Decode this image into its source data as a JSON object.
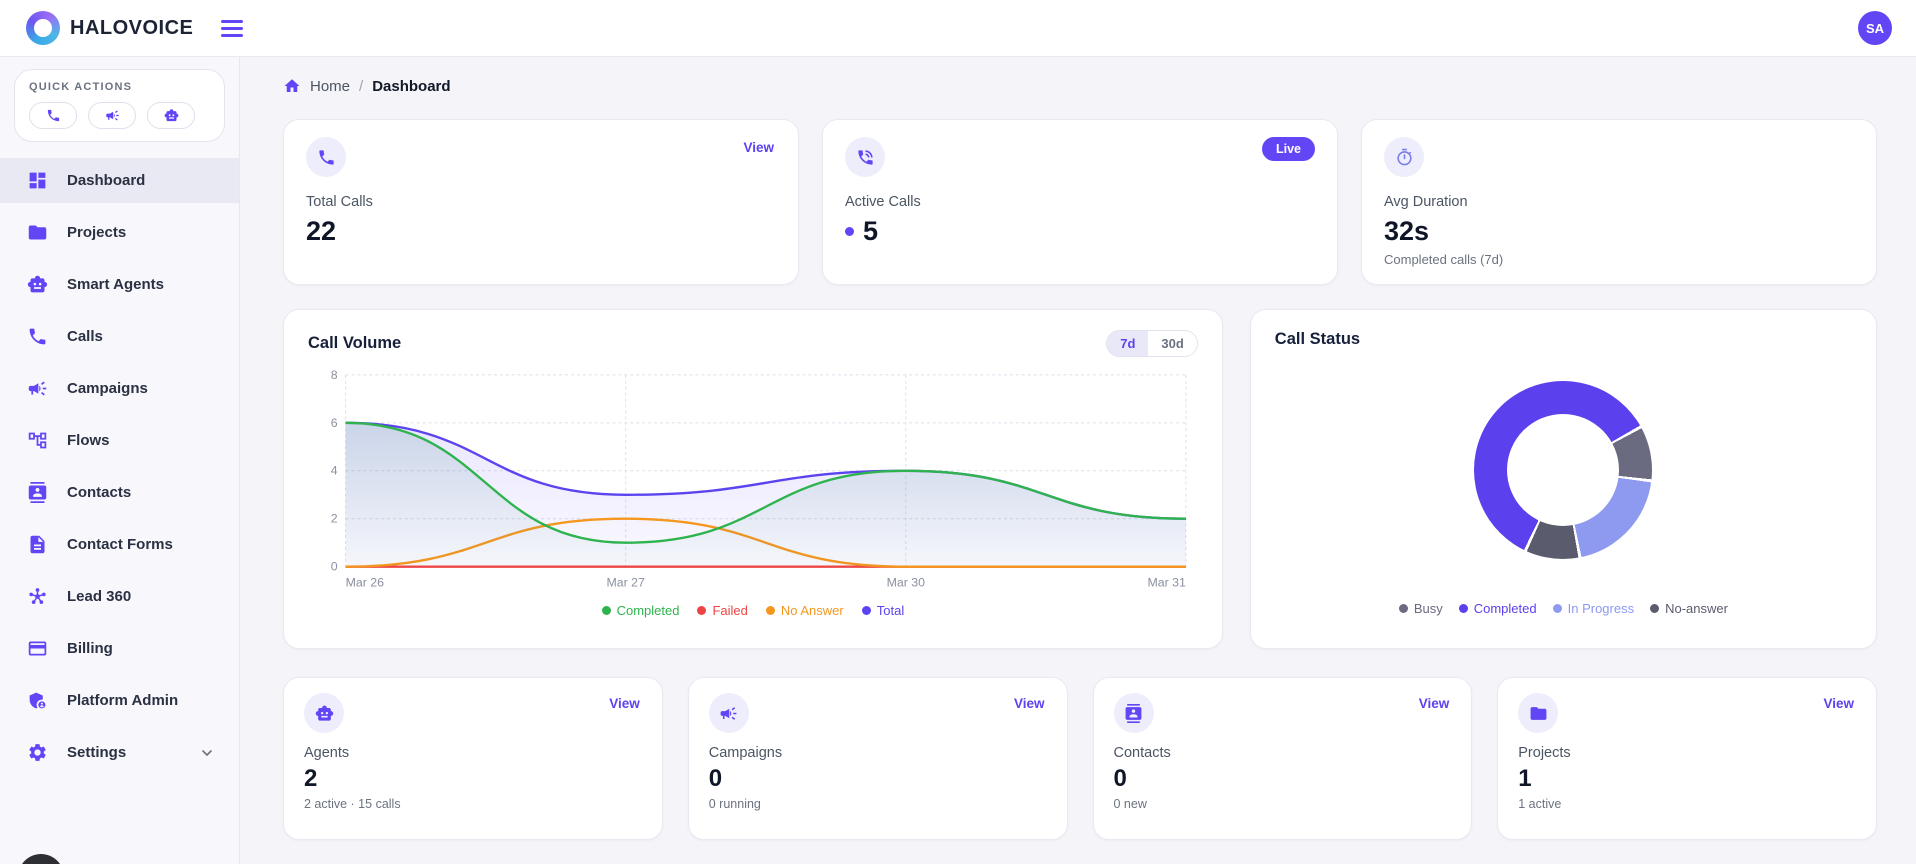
{
  "topbar": {
    "brand": "HALOVOICE",
    "avatar": "SA"
  },
  "colors": {
    "accent": "#6246f5",
    "chart_total": "#5b43f0",
    "chart_completed": "#2eb34f",
    "chart_failed": "#ef4444",
    "chart_no_answer": "#f5961e",
    "donut_completed": "#5b40ee",
    "donut_in_progress": "#8e9af0",
    "donut_busy": "#6a6a80",
    "donut_no_answer": "#5a5c6e"
  },
  "sidebar": {
    "quick_actions_label": "QUICK ACTIONS",
    "quick_actions": [
      {
        "icon": "phone"
      },
      {
        "icon": "megaphone"
      },
      {
        "icon": "robot"
      }
    ],
    "items": [
      {
        "label": "Dashboard",
        "icon": "dashboard",
        "active": true
      },
      {
        "label": "Projects",
        "icon": "folder"
      },
      {
        "label": "Smart Agents",
        "icon": "robot"
      },
      {
        "label": "Calls",
        "icon": "phone"
      },
      {
        "label": "Campaigns",
        "icon": "megaphone"
      },
      {
        "label": "Flows",
        "icon": "flow"
      },
      {
        "label": "Contacts",
        "icon": "contact-card"
      },
      {
        "label": "Contact Forms",
        "icon": "document"
      },
      {
        "label": "Lead 360",
        "icon": "hub"
      },
      {
        "label": "Billing",
        "icon": "credit-card"
      },
      {
        "label": "Platform Admin",
        "icon": "shield-user"
      },
      {
        "label": "Settings",
        "icon": "gear",
        "chevron": true
      }
    ]
  },
  "breadcrumb": {
    "home": "Home",
    "separator": "/",
    "current": "Dashboard"
  },
  "stat_cards": {
    "total_calls": {
      "label": "Total Calls",
      "value": "22",
      "action": "View",
      "icon": "phone"
    },
    "active_calls": {
      "label": "Active Calls",
      "value": "5",
      "badge": "Live",
      "icon": "phone-call"
    },
    "avg_duration": {
      "label": "Avg Duration",
      "value": "32s",
      "subtext": "Completed calls (7d)",
      "icon": "stopwatch"
    }
  },
  "volume_chart": {
    "title": "Call Volume",
    "ranges": [
      {
        "label": "7d",
        "active": true
      },
      {
        "label": "30d",
        "active": false
      }
    ]
  },
  "status_chart": {
    "title": "Call Status"
  },
  "chart_data": [
    {
      "type": "line",
      "title": "Call Volume",
      "x": [
        "Mar 26",
        "Mar 27",
        "Mar 30",
        "Mar 31"
      ],
      "series": [
        {
          "name": "Completed",
          "color": "#2eb34f",
          "fill": "#5e97a0",
          "fill_opacity": 0.22,
          "values": [
            6,
            1,
            4,
            2
          ]
        },
        {
          "name": "Failed",
          "color": "#ef4444",
          "fill": "none",
          "fill_opacity": 0,
          "values": [
            0,
            0,
            0,
            0
          ]
        },
        {
          "name": "No Answer",
          "color": "#f5961e",
          "fill": "none",
          "fill_opacity": 0,
          "values": [
            0,
            2,
            0,
            0
          ]
        },
        {
          "name": "Total",
          "color": "#5b43f0",
          "fill": "#6450f0",
          "fill_opacity": 0.14,
          "values": [
            6,
            3,
            4,
            2
          ]
        }
      ],
      "draw_order": [
        3,
        1,
        2,
        0
      ],
      "ylim": [
        0,
        8
      ],
      "yticks": [
        0,
        2,
        4,
        6,
        8
      ],
      "grid": "dashed",
      "legend_position": "bottom"
    },
    {
      "type": "pie",
      "donut": true,
      "title": "Call Status",
      "labels": [
        "Busy",
        "Completed",
        "In Progress",
        "No-answer"
      ],
      "values": [
        10,
        60,
        20,
        10
      ],
      "unit": "percent_estimated",
      "colors": [
        "#6a6a80",
        "#5b40ee",
        "#8e9af0",
        "#5a5c6e"
      ],
      "start_angle_deg": 205,
      "draw_order": [
        "Completed",
        "Busy",
        "In Progress",
        "No-answer"
      ],
      "legend_position": "bottom"
    }
  ],
  "bottom_cards": [
    {
      "label": "Agents",
      "value": "2",
      "subtext": "2 active · 15 calls",
      "action": "View",
      "icon": "robot"
    },
    {
      "label": "Campaigns",
      "value": "0",
      "subtext": "0 running",
      "action": "View",
      "icon": "megaphone"
    },
    {
      "label": "Contacts",
      "value": "0",
      "subtext": "0 new",
      "action": "View",
      "icon": "contact-card"
    },
    {
      "label": "Projects",
      "value": "1",
      "subtext": "1 active",
      "action": "View",
      "icon": "folder"
    }
  ]
}
